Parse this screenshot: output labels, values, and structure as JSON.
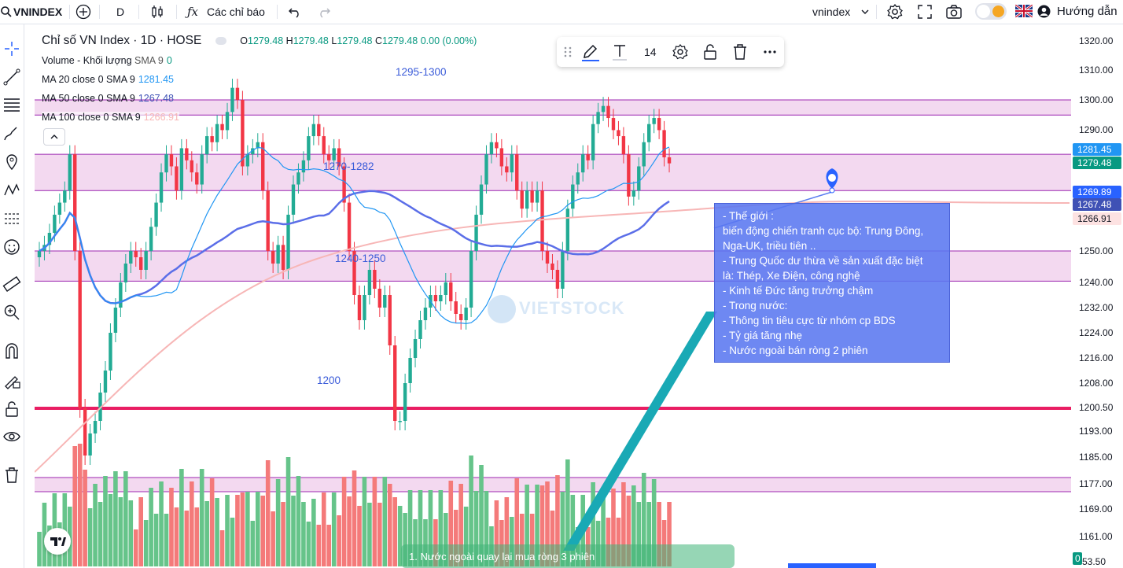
{
  "topbar": {
    "symbol": "VNINDEX",
    "interval": "D",
    "indicators_label": "Các chỉ báo",
    "symbol_select": "vnindex",
    "help_label": "Hướng dẫn"
  },
  "legend": {
    "title": "Chỉ số VN Index · 1D · HOSE",
    "o_label": "O",
    "o": "1279.48",
    "h_label": "H",
    "h": "1279.48",
    "l_label": "L",
    "l": "1279.48",
    "c_label": "C",
    "c": "1279.48",
    "change": "0.00 (0.00%)",
    "volume": {
      "label": "Volume - Khối lượng",
      "sma": "SMA 9",
      "value": "0"
    },
    "ma20": {
      "label": "MA 20 close 0 SMA 9",
      "value": "1281.45"
    },
    "ma50": {
      "label": "MA 50 close 0 SMA 9",
      "value": "1267.48"
    },
    "ma100": {
      "label": "MA 100 close 0 SMA 9",
      "value": "1266.91"
    }
  },
  "drawing_toolbar": {
    "font_size": "14"
  },
  "zones": {
    "z1": "1295-1300",
    "z2": "1270-1282",
    "z3": "1240-1250",
    "z4": "1200"
  },
  "note": {
    "lines": [
      "- Thế giới :",
      "biến động chiến tranh cục bộ: Trung Đông,",
      "Nga-UK, triều tiên ..",
      "- Trung Quốc dư thừa về sản xuất đặc biệt",
      "là: Thép, Xe Điện, công nghệ",
      "- Kinh tế Đức tăng trưởng chậm",
      "- Trong nước:",
      "- Thông tin tiêu cực từ nhóm cp BDS",
      "- Tỷ giá tăng nhẹ",
      "- Nước ngoài bán ròng 2 phiên"
    ]
  },
  "bottom_note": "1. Nước ngoài quay lại mua ròng 3 phiên",
  "watermark": "VIETSTOCK",
  "price_axis": {
    "labels": [
      "1320.00",
      "1310.00",
      "1300.00",
      "1290.00",
      "1250.00",
      "1240.00",
      "1232.00",
      "1224.00",
      "1216.00",
      "1208.00",
      "1200.50",
      "1193.00",
      "1185.00",
      "1177.00",
      "1169.00",
      "1161.00",
      "53.50"
    ],
    "tags": {
      "ma20": "1281.45",
      "last": "1279.48",
      "t1": "1269.89",
      "ma50": "1267.48",
      "ma100": "1266.91",
      "vol": "0"
    }
  },
  "colors": {
    "up": "#22ab94",
    "down": "#f23645",
    "zone": "#f0d0ec",
    "zone_line": "#9c27b0",
    "ma20": "#2196f3",
    "ma50": "#5b6ee8",
    "ma100": "#f7b6b6",
    "support": "#e91e63"
  },
  "chart_data": {
    "type": "candlestick",
    "series": [
      {
        "name": "VNINDEX",
        "close": [
          1250,
          1252,
          1256,
          1262,
          1266,
          1270,
          1282,
          1250,
          1200,
          1185,
          1192,
          1196,
          1205,
          1212,
          1224,
          1232,
          1240,
          1246,
          1250,
          1248,
          1244,
          1250,
          1258,
          1266,
          1276,
          1282,
          1278,
          1270,
          1284,
          1280,
          1276,
          1272,
          1282,
          1288,
          1286,
          1292,
          1290,
          1296,
          1304,
          1300,
          1278,
          1282,
          1284,
          1286,
          1270,
          1250,
          1246,
          1252,
          1244,
          1262,
          1272,
          1276,
          1280,
          1288,
          1292,
          1288,
          1282,
          1280,
          1284,
          1278,
          1266,
          1250,
          1236,
          1228,
          1236,
          1244,
          1238,
          1232,
          1236,
          1220,
          1196,
          1196,
          1208,
          1216,
          1222,
          1228,
          1232,
          1236,
          1234,
          1236,
          1240,
          1234,
          1230,
          1228,
          1232,
          1250,
          1262,
          1272,
          1282,
          1286,
          1284,
          1278,
          1276,
          1282,
          1270,
          1264,
          1270,
          1266,
          1270,
          1250,
          1246,
          1244,
          1238,
          1250,
          1264,
          1272,
          1276,
          1282,
          1280,
          1292,
          1296,
          1298,
          1294,
          1290,
          1288,
          1282,
          1268,
          1270,
          1278,
          1286,
          1292,
          1294,
          1290,
          1281,
          1279
        ]
      }
    ]
  }
}
